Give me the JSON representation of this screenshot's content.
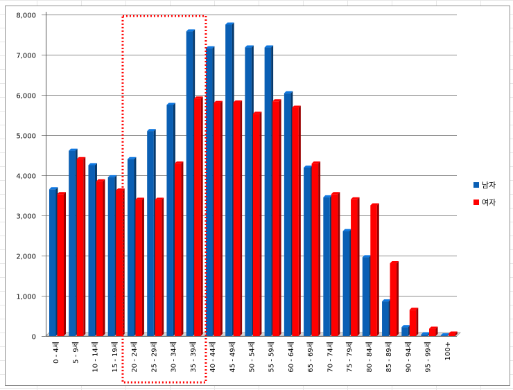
{
  "chart_data": {
    "type": "bar",
    "categories": [
      "0 - 4세",
      "5 - 9세",
      "10 - 14세",
      "15 - 19세",
      "20 - 24세",
      "25 - 29세",
      "30 - 34세",
      "35 - 39세",
      "40 - 44세",
      "45 - 49세",
      "50 - 54세",
      "55 - 59세",
      "60 - 64세",
      "65 - 69세",
      "70 - 74세",
      "75 - 79세",
      "80 - 84세",
      "85 - 89세",
      "90 - 94세",
      "95 - 99세",
      "100+"
    ],
    "series": [
      {
        "name": "남자",
        "color": "#0a5fb4",
        "values": [
          3650,
          4610,
          4250,
          3950,
          4400,
          5100,
          5750,
          7580,
          7160,
          7750,
          7180,
          7180,
          6040,
          4190,
          3450,
          2610,
          1960,
          860,
          220,
          40,
          15
        ]
      },
      {
        "name": "여자",
        "color": "#ff0000",
        "values": [
          3530,
          4400,
          3850,
          3620,
          3390,
          3390,
          4290,
          5910,
          5800,
          5810,
          5530,
          5840,
          5680,
          4290,
          3530,
          3400,
          3250,
          1810,
          650,
          180,
          60
        ]
      }
    ],
    "ylim": [
      0,
      8000
    ],
    "yticks": [
      "0",
      "1,000",
      "2,000",
      "3,000",
      "4,000",
      "5,000",
      "6,000",
      "7,000",
      "8,000"
    ],
    "grid": true,
    "legend_position": "right",
    "highlight": {
      "from_category": "20 - 24세",
      "to_category": "35 - 39세",
      "color": "#ff0000",
      "style": "dotted"
    },
    "title": "",
    "xlabel": "",
    "ylabel": ""
  }
}
